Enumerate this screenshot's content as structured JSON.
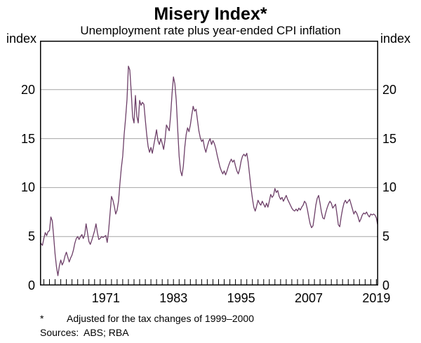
{
  "header": {
    "title": "Misery Index*",
    "subtitle": "Unemployment rate plus year-ended CPI inflation"
  },
  "axes": {
    "left_unit": "index",
    "right_unit": "index"
  },
  "footnotes": {
    "symbol": "*",
    "note": "Adjusted for the tax changes of 1999–2000",
    "sources_label": "Sources:",
    "sources": "ABS; RBA"
  },
  "chart_data": {
    "type": "line",
    "title": "Misery Index*",
    "subtitle": "Unemployment rate plus year-ended CPI inflation",
    "ylabel": "index",
    "ylabel_right": "index",
    "xlabel": "",
    "xlim": [
      1959.32,
      2019.32
    ],
    "ylim": [
      0,
      25
    ],
    "yticks": [
      0,
      5,
      10,
      15,
      20
    ],
    "xticks": [
      1971,
      1983,
      1995,
      2007,
      2019
    ],
    "minor_xtick_interval_years": 1,
    "grid": "horizontal",
    "legend": "none",
    "colors": {
      "line": "#6d3f68",
      "grid": "#a6a6a6",
      "frame": "#000000"
    },
    "series": [
      {
        "name": "Misery index (unemployment rate plus year-ended CPI inflation)",
        "points": [
          [
            1959.5,
            4.3
          ],
          [
            1959.75,
            4.1
          ],
          [
            1960,
            4.8
          ],
          [
            1960.25,
            5.4
          ],
          [
            1960.5,
            5.1
          ],
          [
            1960.75,
            5.5
          ],
          [
            1961,
            5.6
          ],
          [
            1961.25,
            7.0
          ],
          [
            1961.5,
            6.6
          ],
          [
            1961.75,
            5.0
          ],
          [
            1962,
            3.2
          ],
          [
            1962.25,
            1.9
          ],
          [
            1962.5,
            1.0
          ],
          [
            1962.75,
            2.0
          ],
          [
            1963,
            2.6
          ],
          [
            1963.25,
            2.1
          ],
          [
            1963.5,
            2.4
          ],
          [
            1963.75,
            3.0
          ],
          [
            1964,
            3.4
          ],
          [
            1964.25,
            2.9
          ],
          [
            1964.5,
            2.4
          ],
          [
            1964.75,
            2.8
          ],
          [
            1965,
            3.1
          ],
          [
            1965.25,
            3.6
          ],
          [
            1965.5,
            4.3
          ],
          [
            1965.75,
            4.8
          ],
          [
            1966,
            5.0
          ],
          [
            1966.25,
            4.7
          ],
          [
            1966.5,
            5.0
          ],
          [
            1966.75,
            5.2
          ],
          [
            1967,
            4.8
          ],
          [
            1967.25,
            5.2
          ],
          [
            1967.5,
            6.3
          ],
          [
            1967.75,
            5.4
          ],
          [
            1968,
            4.5
          ],
          [
            1968.25,
            4.2
          ],
          [
            1968.5,
            4.6
          ],
          [
            1968.75,
            5.1
          ],
          [
            1969,
            5.6
          ],
          [
            1969.25,
            6.3
          ],
          [
            1969.5,
            5.4
          ],
          [
            1969.75,
            4.7
          ],
          [
            1970,
            4.8
          ],
          [
            1970.25,
            5.0
          ],
          [
            1970.5,
            4.9
          ],
          [
            1970.75,
            5.0
          ],
          [
            1971,
            5.1
          ],
          [
            1971.25,
            4.4
          ],
          [
            1971.5,
            5.6
          ],
          [
            1971.75,
            7.4
          ],
          [
            1972,
            9.1
          ],
          [
            1972.25,
            8.7
          ],
          [
            1972.5,
            8.1
          ],
          [
            1972.75,
            7.3
          ],
          [
            1973,
            7.7
          ],
          [
            1973.25,
            8.6
          ],
          [
            1973.5,
            10.4
          ],
          [
            1973.75,
            12.0
          ],
          [
            1974,
            13.2
          ],
          [
            1974.25,
            15.4
          ],
          [
            1974.5,
            17.0
          ],
          [
            1974.75,
            19.0
          ],
          [
            1975,
            22.4
          ],
          [
            1975.25,
            22.0
          ],
          [
            1975.5,
            19.8
          ],
          [
            1975.75,
            17.2
          ],
          [
            1976,
            16.6
          ],
          [
            1976.25,
            19.4
          ],
          [
            1976.5,
            17.3
          ],
          [
            1976.75,
            16.6
          ],
          [
            1977,
            18.9
          ],
          [
            1977.25,
            18.4
          ],
          [
            1977.5,
            18.7
          ],
          [
            1977.75,
            18.5
          ],
          [
            1978,
            16.9
          ],
          [
            1978.25,
            15.4
          ],
          [
            1978.5,
            14.2
          ],
          [
            1978.75,
            13.6
          ],
          [
            1979,
            14.1
          ],
          [
            1979.25,
            13.5
          ],
          [
            1979.5,
            14.3
          ],
          [
            1979.75,
            15.1
          ],
          [
            1980,
            15.9
          ],
          [
            1980.25,
            14.8
          ],
          [
            1980.5,
            14.4
          ],
          [
            1980.75,
            15.0
          ],
          [
            1981,
            14.5
          ],
          [
            1981.25,
            13.9
          ],
          [
            1981.5,
            14.9
          ],
          [
            1981.75,
            16.4
          ],
          [
            1982,
            16.1
          ],
          [
            1982.25,
            15.8
          ],
          [
            1982.5,
            17.4
          ],
          [
            1982.75,
            19.6
          ],
          [
            1983,
            21.3
          ],
          [
            1983.25,
            20.6
          ],
          [
            1983.5,
            18.9
          ],
          [
            1983.75,
            15.9
          ],
          [
            1984,
            13.2
          ],
          [
            1984.25,
            11.7
          ],
          [
            1984.5,
            11.2
          ],
          [
            1984.75,
            12.2
          ],
          [
            1985,
            14.1
          ],
          [
            1985.25,
            15.4
          ],
          [
            1985.5,
            16.1
          ],
          [
            1985.75,
            15.7
          ],
          [
            1986,
            16.4
          ],
          [
            1986.25,
            17.4
          ],
          [
            1986.5,
            18.3
          ],
          [
            1986.75,
            17.8
          ],
          [
            1987,
            18.0
          ],
          [
            1987.25,
            16.9
          ],
          [
            1987.5,
            15.8
          ],
          [
            1987.75,
            15.1
          ],
          [
            1988,
            14.7
          ],
          [
            1988.25,
            14.9
          ],
          [
            1988.5,
            14.1
          ],
          [
            1988.75,
            13.6
          ],
          [
            1989,
            14.2
          ],
          [
            1989.25,
            14.7
          ],
          [
            1989.5,
            15.0
          ],
          [
            1989.75,
            14.4
          ],
          [
            1990,
            14.8
          ],
          [
            1990.25,
            14.5
          ],
          [
            1990.5,
            14.0
          ],
          [
            1990.75,
            13.3
          ],
          [
            1991,
            12.7
          ],
          [
            1991.25,
            12.1
          ],
          [
            1991.5,
            11.7
          ],
          [
            1991.75,
            11.4
          ],
          [
            1992,
            11.7
          ],
          [
            1992.25,
            11.3
          ],
          [
            1992.5,
            11.7
          ],
          [
            1992.75,
            12.2
          ],
          [
            1993,
            12.6
          ],
          [
            1993.25,
            12.9
          ],
          [
            1993.5,
            12.6
          ],
          [
            1993.75,
            12.8
          ],
          [
            1994,
            12.2
          ],
          [
            1994.25,
            11.7
          ],
          [
            1994.5,
            11.4
          ],
          [
            1994.75,
            11.9
          ],
          [
            1995,
            12.7
          ],
          [
            1995.25,
            13.2
          ],
          [
            1995.5,
            13.4
          ],
          [
            1995.75,
            13.2
          ],
          [
            1996,
            13.5
          ],
          [
            1996.25,
            12.6
          ],
          [
            1996.5,
            11.3
          ],
          [
            1996.75,
            10.0
          ],
          [
            1997,
            8.9
          ],
          [
            1997.25,
            8.0
          ],
          [
            1997.5,
            7.6
          ],
          [
            1997.75,
            8.1
          ],
          [
            1998,
            8.7
          ],
          [
            1998.25,
            8.4
          ],
          [
            1998.5,
            8.2
          ],
          [
            1998.75,
            8.6
          ],
          [
            1999,
            8.3
          ],
          [
            1999.25,
            8.0
          ],
          [
            1999.5,
            8.4
          ],
          [
            1999.75,
            8.0
          ],
          [
            2000,
            8.6
          ],
          [
            2000.25,
            9.3
          ],
          [
            2000.5,
            9.0
          ],
          [
            2000.75,
            9.2
          ],
          [
            2001,
            9.9
          ],
          [
            2001.25,
            9.5
          ],
          [
            2001.5,
            9.7
          ],
          [
            2001.75,
            9.1
          ],
          [
            2002,
            8.8
          ],
          [
            2002.25,
            9.0
          ],
          [
            2002.5,
            8.6
          ],
          [
            2002.75,
            8.9
          ],
          [
            2003,
            9.2
          ],
          [
            2003.25,
            8.8
          ],
          [
            2003.5,
            8.5
          ],
          [
            2003.75,
            8.2
          ],
          [
            2004,
            7.9
          ],
          [
            2004.25,
            7.7
          ],
          [
            2004.5,
            7.6
          ],
          [
            2004.75,
            7.8
          ],
          [
            2005,
            7.6
          ],
          [
            2005.25,
            7.9
          ],
          [
            2005.5,
            7.7
          ],
          [
            2005.75,
            8.0
          ],
          [
            2006,
            8.2
          ],
          [
            2006.25,
            8.6
          ],
          [
            2006.5,
            8.4
          ],
          [
            2006.75,
            7.8
          ],
          [
            2007,
            7.0
          ],
          [
            2007.25,
            6.3
          ],
          [
            2007.5,
            5.9
          ],
          [
            2007.75,
            6.1
          ],
          [
            2008,
            7.1
          ],
          [
            2008.25,
            8.2
          ],
          [
            2008.5,
            8.9
          ],
          [
            2008.75,
            9.2
          ],
          [
            2009,
            8.4
          ],
          [
            2009.25,
            7.5
          ],
          [
            2009.5,
            6.9
          ],
          [
            2009.75,
            6.8
          ],
          [
            2010,
            7.4
          ],
          [
            2010.25,
            7.9
          ],
          [
            2010.5,
            8.3
          ],
          [
            2010.75,
            8.6
          ],
          [
            2011,
            8.4
          ],
          [
            2011.25,
            7.9
          ],
          [
            2011.5,
            8.1
          ],
          [
            2011.75,
            8.3
          ],
          [
            2012,
            7.3
          ],
          [
            2012.25,
            6.2
          ],
          [
            2012.5,
            6.0
          ],
          [
            2012.75,
            7.0
          ],
          [
            2013,
            7.8
          ],
          [
            2013.25,
            8.4
          ],
          [
            2013.5,
            8.7
          ],
          [
            2013.75,
            8.4
          ],
          [
            2014,
            8.6
          ],
          [
            2014.25,
            8.8
          ],
          [
            2014.5,
            8.3
          ],
          [
            2014.75,
            7.8
          ],
          [
            2015,
            7.3
          ],
          [
            2015.25,
            7.6
          ],
          [
            2015.5,
            7.4
          ],
          [
            2015.75,
            7.0
          ],
          [
            2016,
            6.5
          ],
          [
            2016.25,
            6.8
          ],
          [
            2016.5,
            7.2
          ],
          [
            2016.75,
            7.4
          ],
          [
            2017,
            7.3
          ],
          [
            2017.25,
            7.5
          ],
          [
            2017.5,
            7.2
          ],
          [
            2017.75,
            7.0
          ],
          [
            2018,
            7.3
          ],
          [
            2018.25,
            7.2
          ],
          [
            2018.5,
            7.3
          ],
          [
            2018.75,
            7.2
          ],
          [
            2019,
            6.9
          ],
          [
            2019.25,
            6.1
          ]
        ]
      }
    ]
  }
}
